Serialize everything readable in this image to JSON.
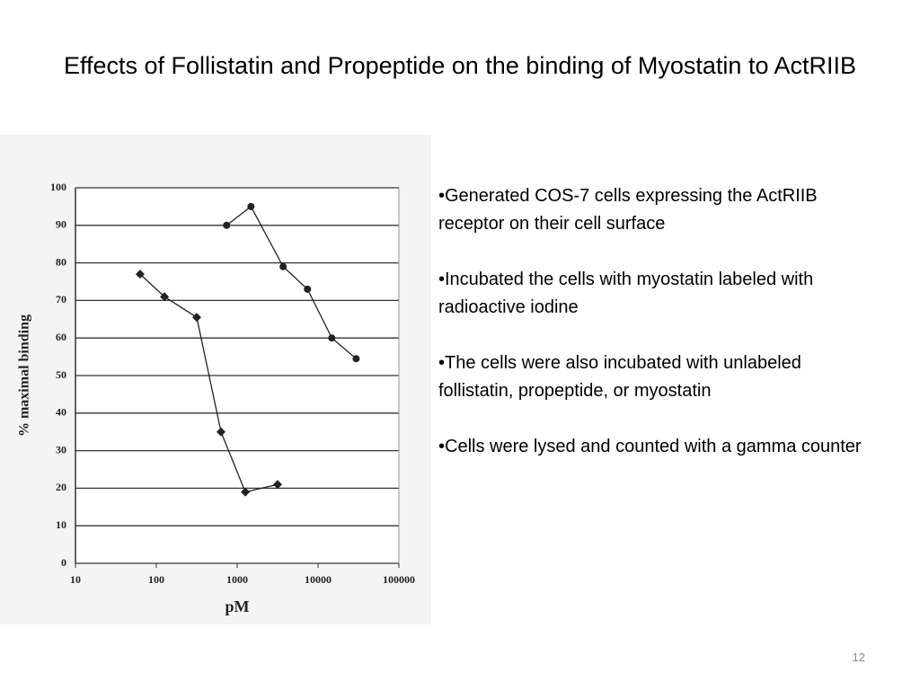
{
  "slide": {
    "title": "Effects of Follistatin and Propeptide on the binding of Myostatin to ActRIIB",
    "bullets": [
      "•Generated COS-7 cells expressing the ActRIIB receptor on their cell surface",
      "•Incubated the cells with myostatin  labeled with radioactive iodine",
      "•The cells were also incubated with unlabeled follistatin, propeptide, or myostatin",
      "•Cells were lysed and counted with a gamma counter"
    ],
    "page_number": "12"
  },
  "chart_data": {
    "type": "line",
    "x_label": "pM",
    "y_label": "% maximal binding",
    "x_log": true,
    "grid": true,
    "xlim": [
      10,
      100000
    ],
    "xticks": [
      10,
      100,
      1000,
      10000,
      100000
    ],
    "ylim": [
      0,
      100
    ],
    "yticks": [
      0,
      10,
      20,
      30,
      40,
      50,
      60,
      70,
      80,
      90,
      100
    ],
    "series": [
      {
        "color": "#222222",
        "marker": "diamond",
        "x": [
          63,
          126,
          316,
          631,
          1260,
          3160
        ],
        "values": [
          77,
          71,
          65.5,
          35,
          19,
          21
        ]
      },
      {
        "color": "#222222",
        "marker": "circle",
        "x": [
          740,
          1480,
          3700,
          7400,
          14800,
          29600
        ],
        "values": [
          90,
          95,
          79,
          73,
          60,
          54.5
        ]
      }
    ]
  }
}
